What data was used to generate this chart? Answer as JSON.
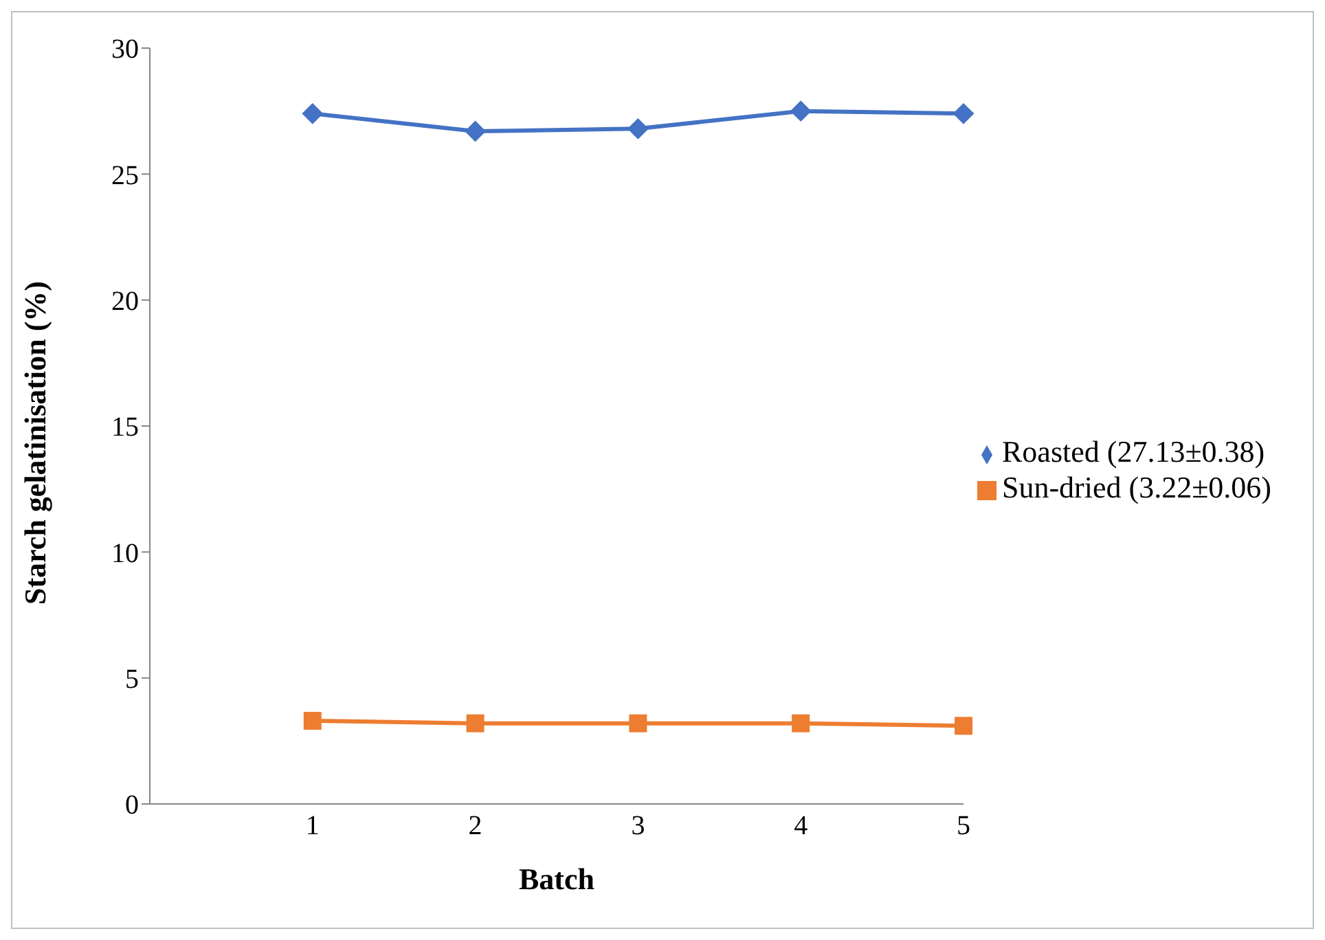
{
  "chart_data": {
    "type": "line",
    "xlabel": "Batch",
    "ylabel": "Starch gelatinisation (%)",
    "categories": [
      null,
      "1",
      "2",
      "3",
      "4",
      "5"
    ],
    "series": [
      {
        "name": "Roasted (27.13±0.38)",
        "color": "#4472c4",
        "marker": "diamond",
        "values": [
          null,
          27.4,
          26.7,
          26.8,
          27.5,
          27.4
        ]
      },
      {
        "name": "Sun-dried (3.22±0.06)",
        "color": "#ed7d31",
        "marker": "square",
        "values": [
          null,
          3.3,
          3.2,
          3.2,
          3.2,
          3.1
        ]
      }
    ],
    "ylim": [
      0,
      30
    ],
    "yticks": [
      0,
      5,
      10,
      15,
      20,
      25,
      30
    ],
    "grid": false,
    "legend": "right"
  }
}
